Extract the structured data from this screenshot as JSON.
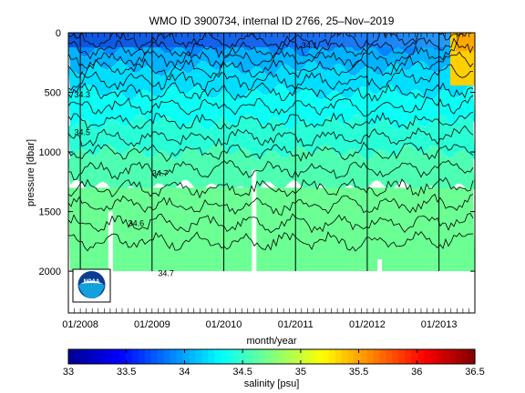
{
  "chart_data": {
    "type": "heatmap",
    "title": "WMO ID 3900734, internal ID 2766, 25–Nov–2019",
    "xlabel": "month/year",
    "ylabel": "pressure [dbar]",
    "x_ticks": [
      "01/2008",
      "01/2009",
      "01/2010",
      "01/2011",
      "01/2012",
      "01/2013"
    ],
    "y_ticks": [
      "0",
      "500",
      "1000",
      "1500",
      "2000"
    ],
    "xlim": [
      "2007-11",
      "2013-07"
    ],
    "ylim": [
      2350,
      0
    ],
    "colorbar": {
      "label": "salinity [psu]",
      "ticks": [
        "33",
        "33.5",
        "34",
        "34.5",
        "35",
        "35.5",
        "36",
        "36.5"
      ],
      "range": [
        33,
        36.5
      ],
      "colormap": "jet",
      "colors": [
        "#00008f",
        "#0000ff",
        "#0080ff",
        "#00ffff",
        "#80ff80",
        "#ffff00",
        "#ff8000",
        "#ff0000",
        "#800000"
      ]
    },
    "contour_labels": [
      {
        "text": "34.1",
        "x": "2011-02",
        "p": 130
      },
      {
        "text": "34.3",
        "x": "2007-12",
        "p": 540
      },
      {
        "text": "34.5",
        "x": "2007-12",
        "p": 860
      },
      {
        "text": "34.7",
        "x": "2009-01",
        "p": 1200
      },
      {
        "text": "34.6",
        "x": "2008-09",
        "p": 1620
      },
      {
        "text": "34.7",
        "x": "2009-02",
        "p": 2040
      }
    ],
    "salinity_bands": [
      {
        "p_top": 0,
        "p_bottom": 140,
        "salinity": 33.9
      },
      {
        "p_top": 140,
        "p_bottom": 300,
        "salinity": 34.05
      },
      {
        "p_top": 300,
        "p_bottom": 500,
        "salinity": 34.2
      },
      {
        "p_top": 500,
        "p_bottom": 750,
        "salinity": 34.35
      },
      {
        "p_top": 750,
        "p_bottom": 1000,
        "salinity": 34.45
      },
      {
        "p_top": 1000,
        "p_bottom": 1300,
        "salinity": 34.58
      },
      {
        "p_top": 1300,
        "p_bottom": 2000,
        "salinity": 34.68
      }
    ],
    "grid": false,
    "logo": "NOAA"
  }
}
